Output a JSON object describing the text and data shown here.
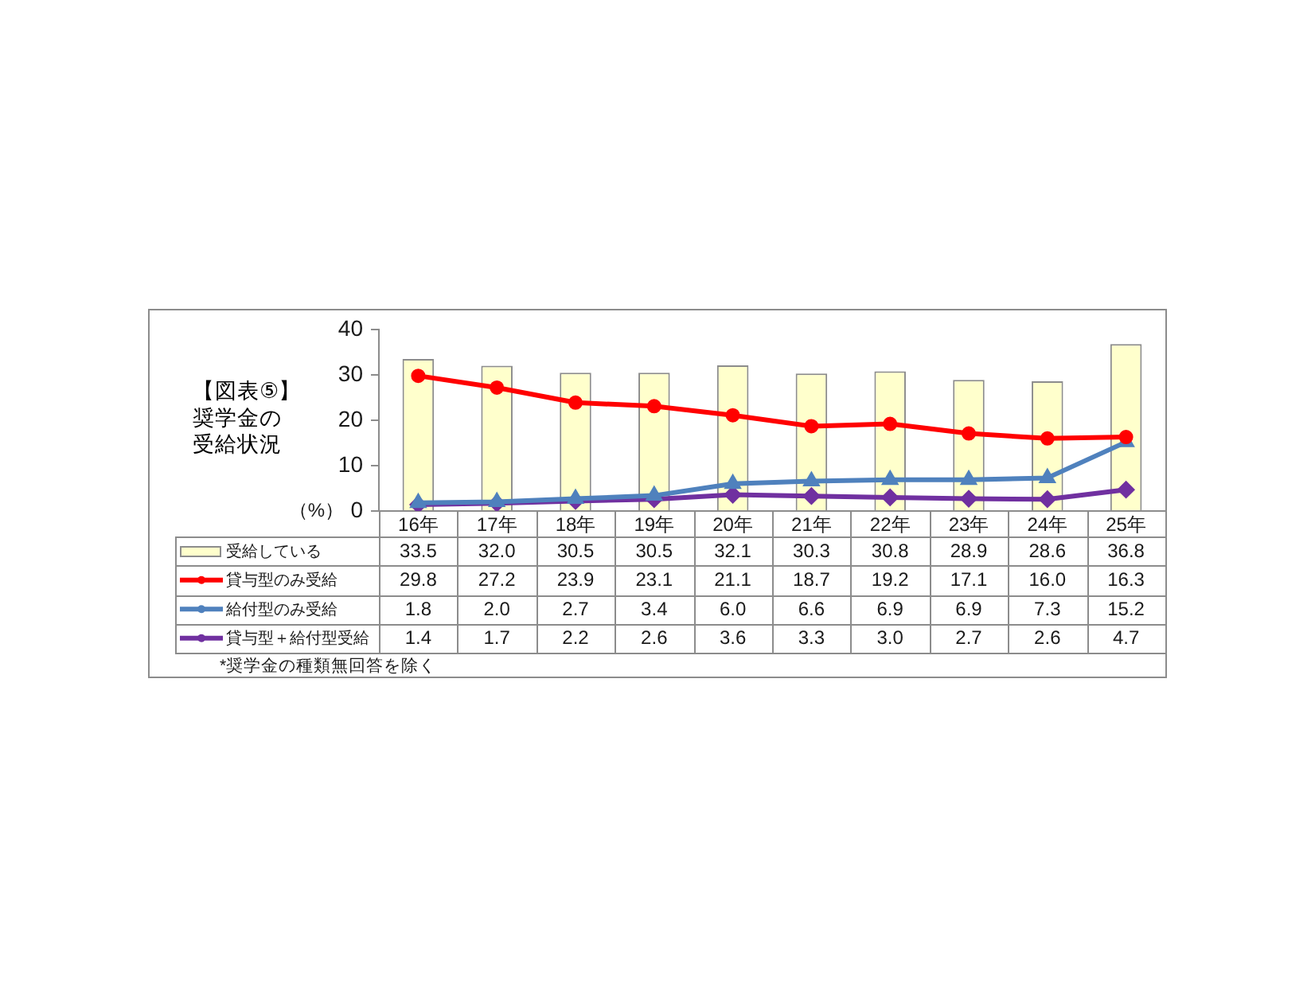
{
  "chart_data": {
    "type": "bar",
    "title": "【図表⑤】奨学金の受給状況",
    "ylabel": "（%）",
    "categories": [
      "16年",
      "17年",
      "18年",
      "19年",
      "20年",
      "21年",
      "22年",
      "23年",
      "24年",
      "25年"
    ],
    "series": [
      {
        "name": "受給している",
        "color": "#ffffcc",
        "values": [
          33.5,
          32.0,
          30.5,
          30.5,
          32.1,
          30.3,
          30.8,
          28.9,
          28.6,
          36.8
        ],
        "value_labels": [
          "33.5",
          "32.0",
          "30.5",
          "30.5",
          "32.1",
          "30.3",
          "30.8",
          "28.9",
          "28.6",
          "36.8"
        ]
      },
      {
        "name": "貸与型のみ受給",
        "type": "line",
        "color": "#ff0000",
        "marker": "circle",
        "values": [
          29.8,
          27.2,
          23.9,
          23.1,
          21.1,
          18.7,
          19.2,
          17.1,
          16.0,
          16.3
        ],
        "value_labels": [
          "29.8",
          "27.2",
          "23.9",
          "23.1",
          "21.1",
          "18.7",
          "19.2",
          "17.1",
          "16.0",
          "16.3"
        ]
      },
      {
        "name": "給付型のみ受給",
        "type": "line",
        "color": "#4f81bd",
        "marker": "triangle",
        "values": [
          1.8,
          2.0,
          2.7,
          3.4,
          6.0,
          6.6,
          6.9,
          6.9,
          7.3,
          15.2
        ],
        "value_labels": [
          "1.8",
          "2.0",
          "2.7",
          "3.4",
          "6.0",
          "6.6",
          "6.9",
          "6.9",
          "7.3",
          "15.2"
        ]
      },
      {
        "name": "貸与型＋給付型受給",
        "type": "line",
        "color": "#7030a0",
        "marker": "diamond",
        "values": [
          1.4,
          1.7,
          2.2,
          2.6,
          3.6,
          3.3,
          3.0,
          2.7,
          2.6,
          4.7
        ],
        "value_labels": [
          "1.4",
          "1.7",
          "2.2",
          "2.6",
          "3.6",
          "3.3",
          "3.0",
          "2.7",
          "2.6",
          "4.7"
        ]
      }
    ],
    "ylim": [
      0,
      40
    ],
    "yticks": [
      0,
      10,
      20,
      30,
      40
    ],
    "legend": "bottom",
    "annotations": [
      "*奨学金の種類無回答を除く"
    ]
  }
}
